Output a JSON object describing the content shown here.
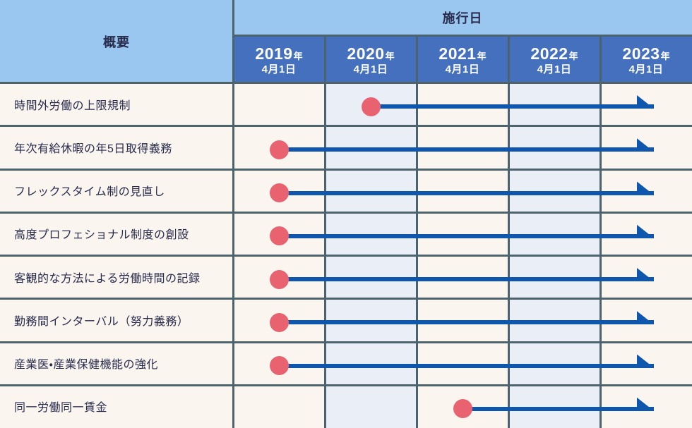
{
  "table": {
    "overview_header": "概要",
    "effective_date_header": "施行日",
    "year_columns": [
      {
        "year": "2019",
        "year_suffix": "年",
        "date": "4月1日"
      },
      {
        "year": "2020",
        "year_suffix": "年",
        "date": "4月1日"
      },
      {
        "year": "2021",
        "year_suffix": "年",
        "date": "4月1日"
      },
      {
        "year": "2022",
        "year_suffix": "年",
        "date": "4月1日"
      },
      {
        "year": "2023",
        "year_suffix": "年",
        "date": "4月1日"
      }
    ],
    "rows": [
      {
        "label": "時間外労働の上限規制",
        "start_year": "2020"
      },
      {
        "label": "年次有給休暇の年5日取得義務",
        "start_year": "2019"
      },
      {
        "label": "フレックスタイム制の見直し",
        "start_year": "2019"
      },
      {
        "label": "高度プロフェショナル制度の創設",
        "start_year": "2019"
      },
      {
        "label": "客観的な方法による労働時間の記録",
        "start_year": "2019"
      },
      {
        "label": "勤務間インターバル（努力義務）",
        "start_year": "2019"
      },
      {
        "label": "産業医・産業保健機能の強化",
        "start_year": "2019"
      },
      {
        "label": "同一労働同一賃金",
        "start_year": "2021"
      }
    ]
  },
  "chart_data": {
    "type": "table",
    "title": "施行日",
    "row_header_label": "概要",
    "columns": [
      "2019年4月1日",
      "2020年4月1日",
      "2021年4月1日",
      "2022年4月1日",
      "2023年4月1日"
    ],
    "rows": [
      {
        "label": "時間外労働の上限規制",
        "start": "2020年4月1日"
      },
      {
        "label": "年次有給休暇の年5日取得義務",
        "start": "2019年4月1日"
      },
      {
        "label": "フレックスタイム制の見直し",
        "start": "2019年4月1日"
      },
      {
        "label": "高度プロフェショナル制度の創設",
        "start": "2019年4月1日"
      },
      {
        "label": "客観的な方法による労働時間の記録",
        "start": "2019年4月1日"
      },
      {
        "label": "勤務間インターバル（努力義務）",
        "start": "2019年4月1日"
      },
      {
        "label": "産業医・産業保健機能の強化",
        "start": "2019年4月1日"
      },
      {
        "label": "同一労働同一賃金",
        "start": "2021年4月1日"
      }
    ],
    "legend": {
      "dot_marker": "施行開始日",
      "arrow": "施行開始日から2023年4月1日以降へ継続"
    },
    "layout_hints": {
      "alt_tinted_columns": [
        "2020年4月1日",
        "2022年4月1日"
      ],
      "grid": true
    }
  },
  "colors": {
    "header_light_blue": "#9ac7f0",
    "year_cell_blue": "#4470bd",
    "row_cream": "#faf5ef",
    "alt_column_tint": "#e9eef7",
    "grid_border": "#4c636d",
    "timeline_line_blue": "#0f57ad",
    "start_marker_pink": "#e9626f",
    "header_text_navy": "#292b4d",
    "year_text_white": "#ffffff"
  }
}
